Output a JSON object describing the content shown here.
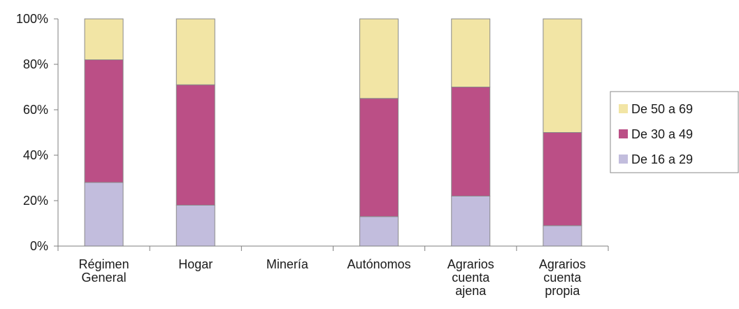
{
  "chart_data": {
    "type": "bar",
    "stacked": true,
    "normalized": true,
    "categories": [
      [
        "Régimen",
        "General"
      ],
      [
        "Hogar"
      ],
      [
        "Minería"
      ],
      [
        "Autónomos"
      ],
      [
        "Agrarios",
        "cuenta",
        "ajena"
      ],
      [
        "Agrarios",
        "cuenta",
        "propia"
      ]
    ],
    "series": [
      {
        "name": "De 16 a 29",
        "color": "#c2bddd",
        "values": [
          28,
          18,
          0,
          13,
          22,
          9
        ]
      },
      {
        "name": "De 30 a 49",
        "color": "#bb4f86",
        "values": [
          54,
          53,
          0,
          52,
          48,
          41
        ]
      },
      {
        "name": "De 50 a 69",
        "color": "#f2e5a5",
        "values": [
          18,
          29,
          0,
          35,
          30,
          50
        ]
      }
    ],
    "legend_order": [
      "De 50 a 69",
      "De 30 a 49",
      "De 16 a 29"
    ],
    "yticks": [
      "0%",
      "20%",
      "40%",
      "60%",
      "80%",
      "100%"
    ],
    "ylim": [
      0,
      100
    ],
    "xlabel": "",
    "ylabel": "",
    "title": "",
    "grid": false,
    "legend_position": "right"
  }
}
